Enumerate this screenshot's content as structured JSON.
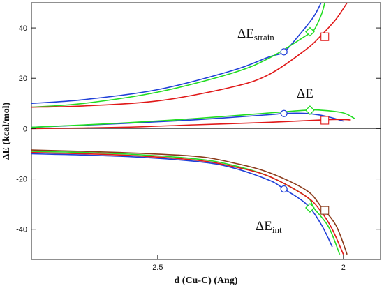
{
  "chart_data": {
    "type": "line",
    "title": "",
    "xlabel": "d (Cu-C) (Ang)",
    "ylabel": "ΔE (kcal/mol)",
    "xlim": [
      2.84,
      1.9
    ],
    "x_reversed": true,
    "ylim": [
      -52,
      50
    ],
    "x_ticks": [
      2.5,
      2.0
    ],
    "x_tick_labels": [
      "2.5",
      "2"
    ],
    "y_ticks": [
      -40,
      -20,
      0,
      20,
      40
    ],
    "y_tick_labels": [
      "-40",
      "-20",
      "0",
      "20",
      "40"
    ],
    "grid": false,
    "legend": "none",
    "colors": {
      "blue": "#1f3fd8",
      "green": "#22dd22",
      "red": "#e01818",
      "brown": "#8b3a1a"
    },
    "annotations": [
      {
        "base": "ΔE",
        "sub": "strain",
        "near": "upper curve group"
      },
      {
        "base": "ΔE",
        "sub": "",
        "near": "middle curve group"
      },
      {
        "base": "ΔE",
        "sub": "int",
        "near": "lower curve group"
      }
    ],
    "series": [
      {
        "group": "strain",
        "color": "blue",
        "x": [
          2.84,
          2.7,
          2.5,
          2.3,
          2.2,
          2.16,
          2.12,
          2.08,
          2.06
        ],
        "y": [
          10,
          11.5,
          15.5,
          23,
          28.5,
          30.5,
          37,
          44.5,
          50
        ]
      },
      {
        "group": "strain",
        "color": "green",
        "x": [
          2.84,
          2.7,
          2.5,
          2.3,
          2.2,
          2.1,
          2.08,
          2.06,
          2.05
        ],
        "y": [
          8.5,
          10,
          14.5,
          22,
          28,
          37,
          39,
          45,
          50
        ]
      },
      {
        "group": "strain",
        "color": "red",
        "x": [
          2.84,
          2.7,
          2.5,
          2.3,
          2.2,
          2.1,
          2.06,
          2.02,
          1.99
        ],
        "y": [
          8.5,
          9,
          11,
          16.5,
          21.5,
          31.5,
          37,
          43.5,
          50
        ]
      },
      {
        "group": "total",
        "color": "blue",
        "x": [
          2.84,
          2.6,
          2.4,
          2.2,
          2.16,
          2.1,
          2.05,
          2.0
        ],
        "y": [
          0.5,
          2,
          3.5,
          5.5,
          6,
          6,
          5,
          3
        ]
      },
      {
        "group": "total",
        "color": "green",
        "x": [
          2.84,
          2.6,
          2.4,
          2.2,
          2.1,
          2.06,
          2.0,
          1.97
        ],
        "y": [
          0.5,
          2.2,
          4,
          6.2,
          7.3,
          7.3,
          6.2,
          4
        ]
      },
      {
        "group": "total",
        "color": "red",
        "x": [
          2.84,
          2.6,
          2.4,
          2.2,
          2.05,
          2.0,
          1.98
        ],
        "y": [
          0,
          0.5,
          1.5,
          2.5,
          3.5,
          3.6,
          3.4
        ]
      },
      {
        "group": "int",
        "color": "blue",
        "x": [
          2.84,
          2.6,
          2.4,
          2.3,
          2.2,
          2.16,
          2.1,
          2.06,
          2.03
        ],
        "y": [
          -10,
          -11,
          -13,
          -15.5,
          -20.5,
          -24,
          -30,
          -38,
          -47
        ]
      },
      {
        "group": "int",
        "color": "green",
        "x": [
          2.84,
          2.6,
          2.4,
          2.3,
          2.2,
          2.1,
          2.08,
          2.04,
          2.01
        ],
        "y": [
          -9,
          -10,
          -12,
          -14.5,
          -19,
          -27,
          -31.5,
          -39,
          -50
        ]
      },
      {
        "group": "int",
        "color": "brown",
        "x": [
          2.84,
          2.6,
          2.4,
          2.3,
          2.2,
          2.1,
          2.06,
          2.02,
          1.99
        ],
        "y": [
          -8.5,
          -9.5,
          -11,
          -13.5,
          -17.5,
          -24.5,
          -31,
          -38.5,
          -50
        ]
      },
      {
        "group": "int",
        "color": "red",
        "x": [
          2.84,
          2.6,
          2.4,
          2.3,
          2.2,
          2.1,
          2.06,
          2.03,
          2.0
        ],
        "y": [
          -9.5,
          -10.5,
          -12.5,
          -15,
          -19,
          -27,
          -33,
          -40,
          -50
        ]
      }
    ],
    "markers": [
      {
        "shape": "circle",
        "color": "blue",
        "x": 2.16,
        "y": 30.5
      },
      {
        "shape": "diamond",
        "color": "green",
        "x": 2.09,
        "y": 38.5
      },
      {
        "shape": "square",
        "color": "red",
        "x": 2.05,
        "y": 36.5
      },
      {
        "shape": "circle",
        "color": "blue",
        "x": 2.16,
        "y": 6
      },
      {
        "shape": "diamond",
        "color": "green",
        "x": 2.09,
        "y": 7.3
      },
      {
        "shape": "square",
        "color": "red",
        "x": 2.05,
        "y": 3.3
      },
      {
        "shape": "circle",
        "color": "blue",
        "x": 2.16,
        "y": -24
      },
      {
        "shape": "diamond",
        "color": "green",
        "x": 2.09,
        "y": -31.5
      },
      {
        "shape": "square",
        "color": "brown",
        "x": 2.05,
        "y": -32.5
      }
    ]
  }
}
